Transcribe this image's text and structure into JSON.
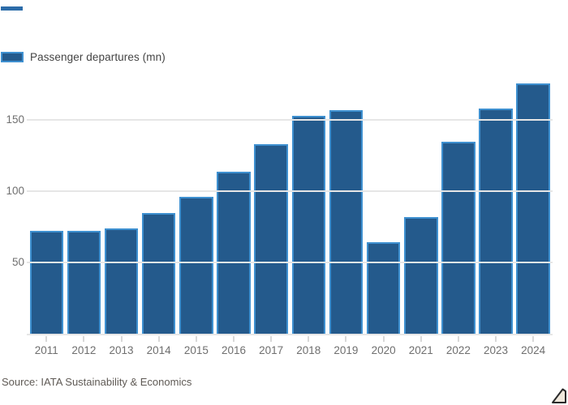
{
  "page": {
    "background": "#ffffff"
  },
  "brand": {
    "top_rule_color": "#2c6ca9"
  },
  "legend": {
    "label": "Passenger departures (mn)",
    "swatch_fill": "#245a8c",
    "swatch_border": "#3e90d0"
  },
  "chart_data": {
    "type": "bar",
    "title": "",
    "legend": [
      "Passenger departures (mn)"
    ],
    "categories": [
      "2011",
      "2012",
      "2013",
      "2014",
      "2015",
      "2016",
      "2017",
      "2018",
      "2019",
      "2020",
      "2021",
      "2022",
      "2023",
      "2024"
    ],
    "values": [
      72,
      72,
      74,
      85,
      96,
      114,
      133,
      153,
      157,
      64,
      82,
      135,
      158,
      176
    ],
    "xlabel": "",
    "ylabel": "",
    "yticks": [
      50,
      100,
      150
    ],
    "ylim": [
      0,
      190
    ],
    "grid": "horizontal-over-bars",
    "bar_fill": "#245a8c",
    "bar_border": "#3e90d0",
    "gridline_color": "#e6e6e6",
    "axis_tick_color": "#d9d9d9",
    "tick_label_color": "#6f6f6f"
  },
  "footer": {
    "source": "Source: IATA Sustainability & Economics",
    "expand_icon": "corner-triangle-icon",
    "expand_icon_fill": "#f0e8dc",
    "expand_icon_stroke": "#2b2b2b"
  }
}
